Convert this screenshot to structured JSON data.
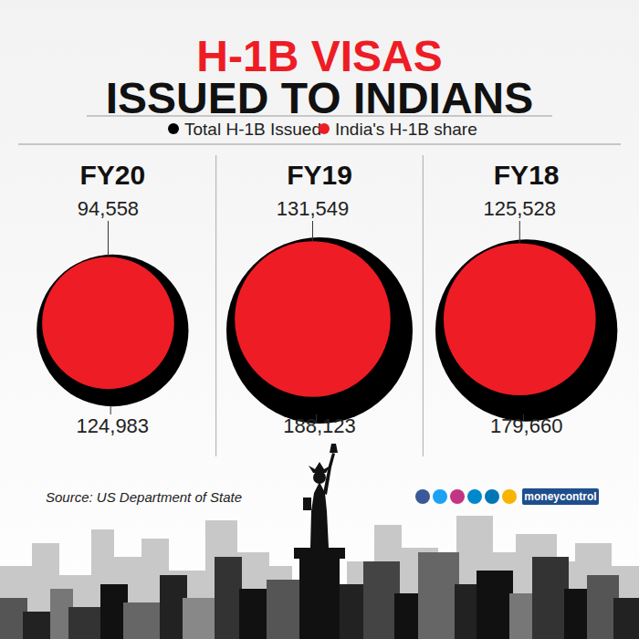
{
  "chart_data": {
    "type": "bubble",
    "title": "H-1B VISAS\nISSUED TO INDIANS",
    "categories": [
      "FY20",
      "FY19",
      "FY18"
    ],
    "series": [
      {
        "name": "Total H-1B Issued",
        "color": "#000000",
        "values": [
          124983,
          188123,
          179660
        ],
        "value_labels": [
          "124,983",
          "188,123",
          "179,660"
        ]
      },
      {
        "name": "India's H-1B share",
        "color": "#ee1c25",
        "values": [
          94558,
          131549,
          125528
        ],
        "value_labels": [
          "94,558",
          "131,549",
          "125,528"
        ]
      }
    ],
    "data_labels": true,
    "legend": "top",
    "annotations": [
      "Source: US Department of State",
      "moneycontrol"
    ]
  }
}
